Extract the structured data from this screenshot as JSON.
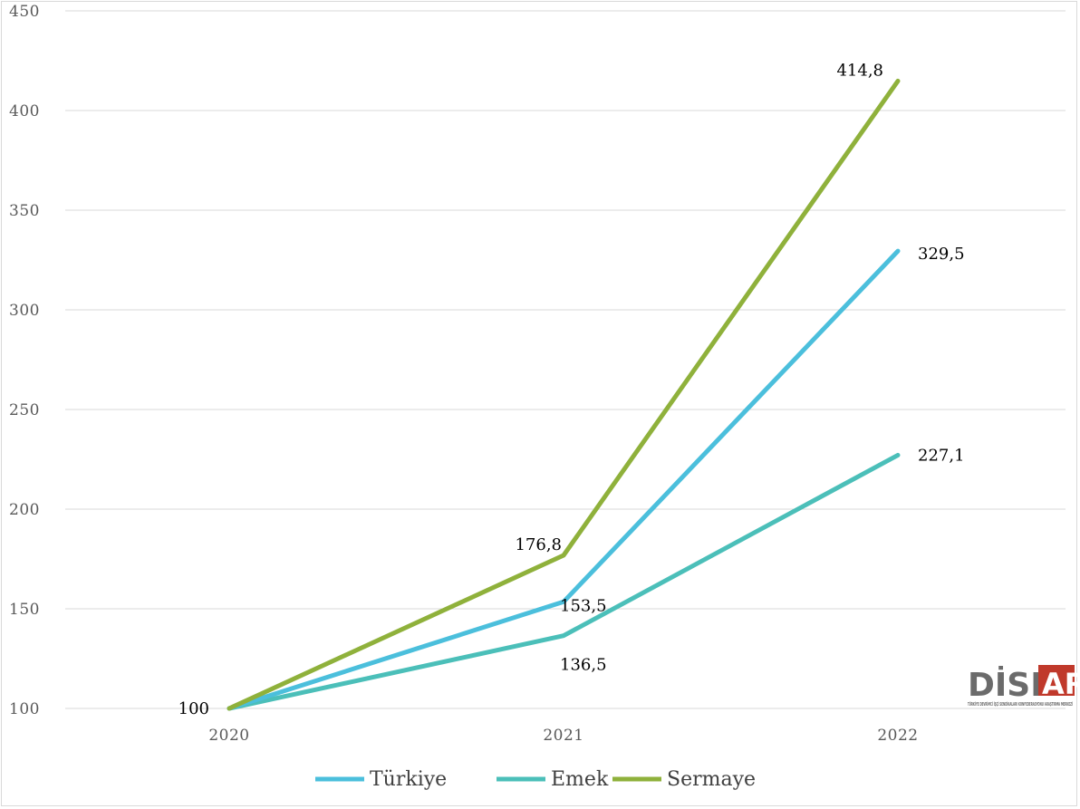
{
  "chart_data": {
    "type": "line",
    "x": [
      "2020",
      "2021",
      "2022"
    ],
    "ylim": [
      100,
      450
    ],
    "yticks": [
      100,
      150,
      200,
      250,
      300,
      350,
      400,
      450
    ],
    "ytick_labels": [
      "100",
      "150",
      "200",
      "250",
      "300",
      "350",
      "400",
      "450"
    ],
    "grid": true,
    "legend_position": "bottom",
    "series": [
      {
        "name": "Türkiye",
        "color": "#4bbfdc",
        "values": [
          100,
          153.5,
          329.5
        ],
        "labels": [
          "",
          "153,5",
          "329,5"
        ]
      },
      {
        "name": "Emek",
        "color": "#4bbfb9",
        "values": [
          100,
          136.5,
          227.1
        ],
        "labels": [
          "",
          "136,5",
          "227,1"
        ]
      },
      {
        "name": "Sermaye",
        "color": "#8fb13b",
        "values": [
          100,
          176.8,
          414.8
        ],
        "labels": [
          "100",
          "176,8",
          "414,8"
        ]
      }
    ]
  },
  "logo": {
    "text_left": "DİSK",
    "text_right": "AR",
    "subtitle": "TÜRKİYE DEVRİMCİ İŞÇİ SENDİKALARI KONFEDERASYONU ARAŞTIRMA MERKEZİ",
    "color_dark": "#6b6b6b",
    "color_red": "#c0392b"
  }
}
